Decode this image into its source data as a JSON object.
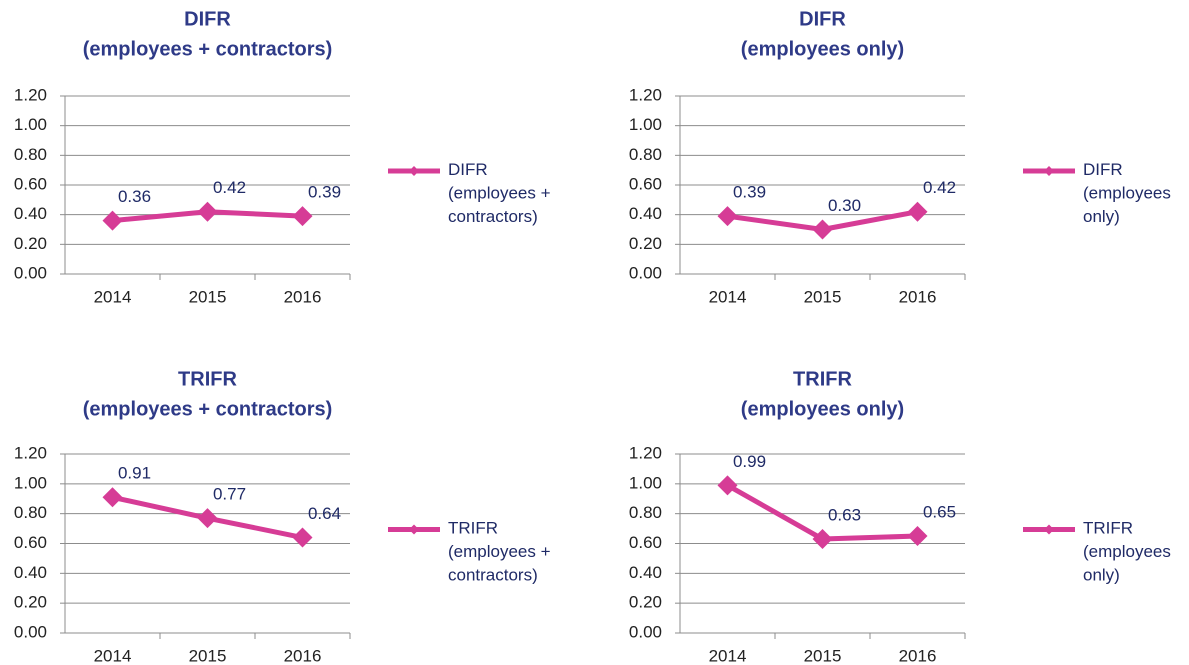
{
  "chart_data": [
    {
      "type": "line",
      "title": [
        "DIFR",
        "(employees + contractors)"
      ],
      "categories": [
        "2014",
        "2015",
        "2016"
      ],
      "series": [
        {
          "name": "DIFR (employees + contractors)",
          "color": "#d63c96",
          "values": [
            0.36,
            0.42,
            0.39
          ],
          "value_labels": [
            "0.36",
            "0.42",
            "0.39"
          ]
        }
      ],
      "ylim": [
        0,
        1.2
      ],
      "yticks": [
        {
          "value": 0,
          "label": "0.00"
        },
        {
          "value": 0.2,
          "label": "0.20"
        },
        {
          "value": 0.4,
          "label": "0.40"
        },
        {
          "value": 0.6,
          "label": "0.60"
        },
        {
          "value": 0.8,
          "label": "0.80"
        },
        {
          "value": 1,
          "label": "1.00"
        },
        {
          "value": 1.2,
          "label": "1.20"
        }
      ],
      "grid": true,
      "legend": "right"
    },
    {
      "type": "line",
      "title": [
        "DIFR",
        "(employees only)"
      ],
      "categories": [
        "2014",
        "2015",
        "2016"
      ],
      "series": [
        {
          "name": "DIFR (employees only)",
          "color": "#d63c96",
          "values": [
            0.39,
            0.3,
            0.42
          ],
          "value_labels": [
            "0.39",
            "0.30",
            "0.42"
          ]
        }
      ],
      "ylim": [
        0,
        1.2
      ],
      "yticks": [
        {
          "value": 0,
          "label": "0.00"
        },
        {
          "value": 0.2,
          "label": "0.20"
        },
        {
          "value": 0.4,
          "label": "0.40"
        },
        {
          "value": 0.6,
          "label": "0.60"
        },
        {
          "value": 0.8,
          "label": "0.80"
        },
        {
          "value": 1,
          "label": "1.00"
        },
        {
          "value": 1.2,
          "label": "1.20"
        }
      ],
      "grid": true,
      "legend": "right"
    },
    {
      "type": "line",
      "title": [
        "TRIFR",
        "(employees + contractors)"
      ],
      "categories": [
        "2014",
        "2015",
        "2016"
      ],
      "series": [
        {
          "name": "TRIFR (employees + contractors)",
          "color": "#d63c96",
          "values": [
            0.91,
            0.77,
            0.64
          ],
          "value_labels": [
            "0.91",
            "0.77",
            "0.64"
          ]
        }
      ],
      "ylim": [
        0,
        1.2
      ],
      "yticks": [
        {
          "value": 0,
          "label": "0.00"
        },
        {
          "value": 0.2,
          "label": "0.20"
        },
        {
          "value": 0.4,
          "label": "0.40"
        },
        {
          "value": 0.6,
          "label": "0.60"
        },
        {
          "value": 0.8,
          "label": "0.80"
        },
        {
          "value": 1,
          "label": "1.00"
        },
        {
          "value": 1.2,
          "label": "1.20"
        }
      ],
      "grid": true,
      "legend": "right"
    },
    {
      "type": "line",
      "title": [
        "TRIFR",
        "(employees only)"
      ],
      "categories": [
        "2014",
        "2015",
        "2016"
      ],
      "series": [
        {
          "name": "TRIFR (employees only)",
          "color": "#d63c96",
          "values": [
            0.99,
            0.63,
            0.65
          ],
          "value_labels": [
            "0.99",
            "0.63",
            "0.65"
          ]
        }
      ],
      "ylim": [
        0,
        1.2
      ],
      "yticks": [
        {
          "value": 0,
          "label": "0.00"
        },
        {
          "value": 0.2,
          "label": "0.20"
        },
        {
          "value": 0.4,
          "label": "0.40"
        },
        {
          "value": 0.6,
          "label": "0.60"
        },
        {
          "value": 0.8,
          "label": "0.80"
        },
        {
          "value": 1,
          "label": "1.00"
        },
        {
          "value": 1.2,
          "label": "1.20"
        }
      ],
      "grid": true,
      "legend": "right"
    }
  ]
}
